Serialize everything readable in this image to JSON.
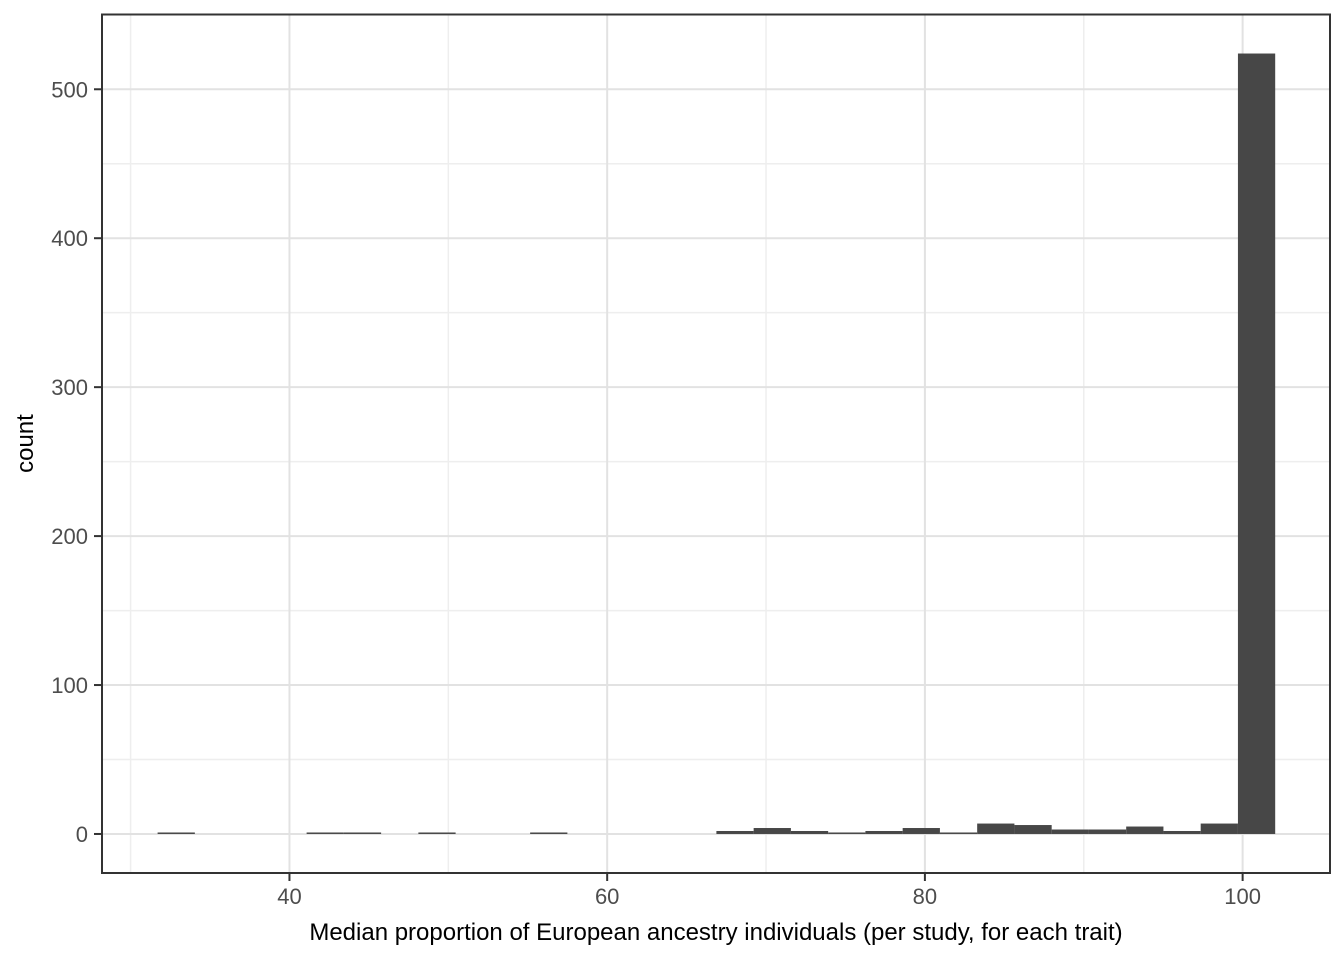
{
  "chart_data": {
    "type": "bar",
    "subtype": "histogram",
    "title": "",
    "xlabel": "Median proportion of European ancestry individuals (per study, for each trait)",
    "ylabel": "count",
    "bins": {
      "start": 31.7,
      "width": 2.345,
      "counts": [
        1,
        0,
        0,
        0,
        1,
        1,
        0,
        1,
        0,
        0,
        1,
        0,
        0,
        0,
        0,
        2,
        4,
        2,
        1,
        2,
        4,
        1,
        7,
        6,
        3,
        3,
        5,
        2,
        7,
        524
      ]
    },
    "x_axis": {
      "ticks": [
        40,
        60,
        80,
        100
      ],
      "minor_ticks": [
        30,
        50,
        70,
        90
      ],
      "domain": [
        28.2,
        105.5
      ]
    },
    "y_axis": {
      "ticks": [
        0,
        100,
        200,
        300,
        400,
        500
      ],
      "minor_ticks": [
        50,
        150,
        250,
        350,
        450
      ],
      "domain": [
        -26.2,
        550.2
      ]
    },
    "grid": true,
    "legend": false,
    "max_count": 524
  },
  "colors": {
    "bar_fill": "#474747",
    "panel_border": "#333333",
    "grid_major": "#E2E2E2",
    "grid_minor": "#EEEEEE",
    "tick_mark": "#333333",
    "tick_label": "#4D4D4D",
    "axis_title": "#000000",
    "background": "#FFFFFF"
  }
}
